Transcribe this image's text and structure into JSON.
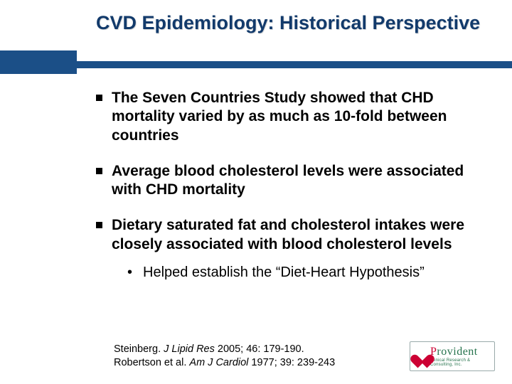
{
  "colors": {
    "title": "#123a6b",
    "header_block": "#1b4f87",
    "header_strip": "#1b4f87",
    "bullet_text": "#000000",
    "logo_red": "#cc0033",
    "logo_green": "#26734d"
  },
  "title": "CVD Epidemiology: Historical Perspective",
  "bullets": [
    "The Seven Countries Study showed that CHD mortality varied by as much as 10-fold between countries",
    "Average blood cholesterol levels were associated with CHD mortality",
    "Dietary saturated fat and cholesterol intakes were closely associated with blood cholesterol levels"
  ],
  "sub_bullet": {
    "marker": "•",
    "text": "Helped establish the “Diet-Heart Hypothesis”"
  },
  "references": [
    {
      "author": "Steinberg.",
      "journal": "J Lipid Res",
      "rest": " 2005; 46: 179-190."
    },
    {
      "author": "Robertson et al. ",
      "journal": "Am J Cardiol",
      "rest": " 1977; 39: 239-243"
    }
  ],
  "logo": {
    "name_p": "P",
    "name_rest": "rovident",
    "tag": "Clinical Research & Consulting, Inc."
  }
}
